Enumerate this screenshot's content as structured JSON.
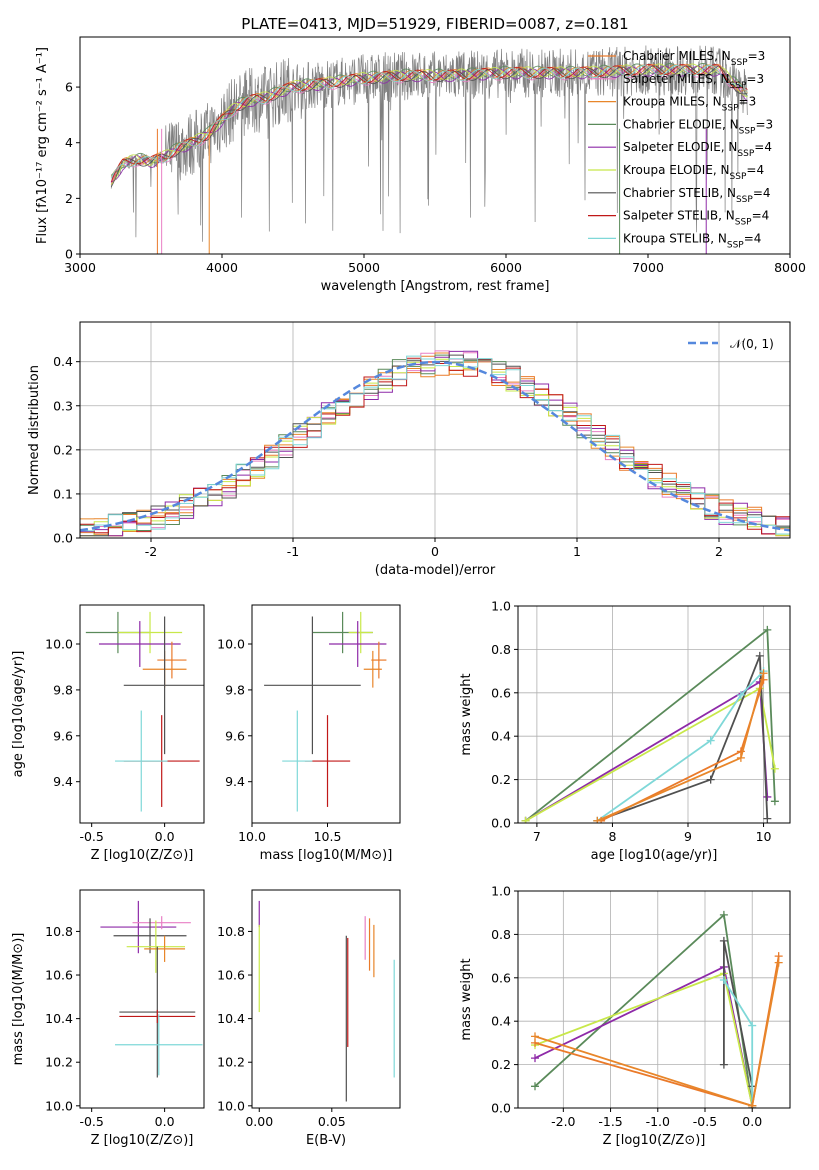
{
  "figure": {
    "title": "PLATE=0413, MJD=51929, FIBERID=0087, z=0.181"
  },
  "colors": {
    "data": "#808080",
    "models": [
      "#ea7a2a",
      "#e87fc4",
      "#e8862a",
      "#5a8a5a",
      "#8e2aa8",
      "#c8e84a",
      "#505050",
      "#c01818",
      "#7fd8d8"
    ],
    "gaussian": "#5588dd",
    "axes": "#000000",
    "grid": "#b0b0b0"
  },
  "chart_data": [
    {
      "id": "spectrum",
      "type": "line",
      "title": "PLATE=0413, MJD=51929, FIBERID=0087, z=0.181",
      "xlabel": "wavelength [Angstrom, rest frame]",
      "ylabel": "Flux [fλ10⁻¹⁷ erg cm⁻² s⁻¹ A⁻¹]",
      "xlim": [
        3000,
        8000
      ],
      "ylim": [
        0,
        7.8
      ],
      "xticks": [
        3000,
        4000,
        5000,
        6000,
        7000,
        8000
      ],
      "yticks": [
        0,
        2,
        4,
        6
      ],
      "grid": false,
      "legend_placement": "top-right",
      "series": [
        {
          "name": "Chabrier MILES, N",
          "sub": "SSP",
          "tail": "=3",
          "color": "#ea7a2a"
        },
        {
          "name": "Salpeter MILES, N",
          "sub": "SSP",
          "tail": "=3",
          "color": "#e87fc4"
        },
        {
          "name": "Kroupa MILES, N",
          "sub": "SSP",
          "tail": "=3",
          "color": "#e8862a"
        },
        {
          "name": "Chabrier ELODIE, N",
          "sub": "SSP",
          "tail": "=3",
          "color": "#5a8a5a"
        },
        {
          "name": "Salpeter ELODIE, N",
          "sub": "SSP",
          "tail": "=4",
          "color": "#8e2aa8"
        },
        {
          "name": "Kroupa ELODIE, N",
          "sub": "SSP",
          "tail": "=4",
          "color": "#c8e84a"
        },
        {
          "name": "Chabrier STELIB, N",
          "sub": "SSP",
          "tail": "=4",
          "color": "#505050"
        },
        {
          "name": "Salpeter STELIB, N",
          "sub": "SSP",
          "tail": "=4",
          "color": "#c01818"
        },
        {
          "name": "Kroupa STELIB, N",
          "sub": "SSP",
          "tail": "=4",
          "color": "#7fd8d8"
        }
      ],
      "continuum": {
        "x": [
          3220,
          3300,
          3400,
          3500,
          3600,
          3700,
          3800,
          3900,
          4000,
          4100,
          4200,
          4300,
          4400,
          4500,
          4700,
          5000,
          5300,
          5600,
          6000,
          6500,
          7000,
          7500,
          7700
        ],
        "y": [
          2.6,
          3.2,
          3.4,
          3.3,
          3.5,
          3.8,
          4.0,
          4.3,
          4.8,
          5.3,
          5.5,
          5.6,
          5.8,
          6.0,
          6.1,
          6.3,
          6.4,
          6.4,
          6.5,
          6.5,
          6.6,
          6.6,
          5.7
        ]
      }
    },
    {
      "id": "residuals",
      "type": "bar",
      "xlabel": "(data-model)/error",
      "ylabel": "Normed distribution",
      "xlim": [
        -2.5,
        2.5
      ],
      "ylim": [
        0,
        0.49
      ],
      "xticks": [
        -2,
        -1,
        0,
        1,
        2
      ],
      "yticks": [
        0.0,
        0.1,
        0.2,
        0.3,
        0.4
      ],
      "grid": true,
      "legend_placement": "top-right",
      "gaussian_label": "𝒩(0, 1)"
    },
    {
      "id": "age-vs-Z",
      "type": "scatter",
      "xlabel": "Z [log10(Z/Z⊙)]",
      "ylabel": "age  [log10(age/yr)]",
      "xlim": [
        -0.58,
        0.27
      ],
      "ylim": [
        9.22,
        10.17
      ],
      "xticks": [
        -0.5,
        0.0
      ],
      "yticks": [
        9.4,
        9.6,
        9.8,
        10.0
      ],
      "points": [
        {
          "x": -0.32,
          "xerr": 0.22,
          "y": 10.05,
          "yerr": 0.09,
          "c": 3
        },
        {
          "x": -0.1,
          "xerr": 0.22,
          "y": 10.05,
          "yerr": 0.09,
          "c": 5
        },
        {
          "x": -0.17,
          "xerr": 0.28,
          "y": 10.0,
          "yerr": 0.1,
          "c": 4
        },
        {
          "x": 0.05,
          "xerr": 0.1,
          "y": 9.93,
          "yerr": 0.08,
          "c": 0
        },
        {
          "x": 0.0,
          "xerr": 0.15,
          "y": 9.89,
          "yerr": 0.08,
          "c": 2
        },
        {
          "x": 0.0,
          "xerr": 0.28,
          "y": 9.82,
          "yerr": 0.3,
          "c": 6
        },
        {
          "x": -0.02,
          "xerr": 0.26,
          "y": 9.49,
          "yerr": 0.2,
          "c": 7
        },
        {
          "x": -0.16,
          "xerr": 0.18,
          "y": 9.49,
          "yerr": 0.22,
          "c": 8
        }
      ]
    },
    {
      "id": "age-vs-mass",
      "type": "scatter",
      "xlabel": "mass [log10(M/M⊙)]",
      "ylabel": "",
      "xlim": [
        10.0,
        10.98
      ],
      "ylim": [
        9.22,
        10.17
      ],
      "xticks": [
        10.0,
        10.5
      ],
      "yticks": [
        9.4,
        9.6,
        9.8,
        10.0
      ],
      "points": [
        {
          "x": 10.6,
          "xerr": 0.2,
          "y": 10.05,
          "yerr": 0.09,
          "c": 3
        },
        {
          "x": 10.72,
          "xerr": 0.08,
          "y": 10.05,
          "yerr": 0.09,
          "c": 5
        },
        {
          "x": 10.7,
          "xerr": 0.19,
          "y": 10.0,
          "yerr": 0.1,
          "c": 4
        },
        {
          "x": 10.84,
          "xerr": 0.05,
          "y": 9.93,
          "yerr": 0.08,
          "c": 0
        },
        {
          "x": 10.8,
          "xerr": 0.06,
          "y": 9.89,
          "yerr": 0.08,
          "c": 2
        },
        {
          "x": 10.4,
          "xerr": 0.32,
          "y": 9.82,
          "yerr": 0.3,
          "c": 6
        },
        {
          "x": 10.5,
          "xerr": 0.15,
          "y": 9.49,
          "yerr": 0.2,
          "c": 7
        },
        {
          "x": 10.3,
          "xerr": 0.1,
          "y": 9.49,
          "yerr": 0.22,
          "c": 8
        }
      ]
    },
    {
      "id": "massweight-vs-age",
      "type": "line",
      "xlabel": "age  [log10(age/yr)]",
      "ylabel": "mass weight",
      "xlim": [
        6.75,
        10.35
      ],
      "ylim": [
        0.0,
        1.0
      ],
      "xticks": [
        7,
        8,
        9,
        10
      ],
      "yticks": [
        0.0,
        0.2,
        0.4,
        0.6,
        0.8,
        1.0
      ],
      "grid": true,
      "series": [
        {
          "c": 3,
          "x": [
            6.85,
            10.05,
            10.15
          ],
          "y": [
            0.01,
            0.89,
            0.1
          ]
        },
        {
          "c": 4,
          "x": [
            6.85,
            9.95,
            10.05
          ],
          "y": [
            0.01,
            0.65,
            0.12
          ]
        },
        {
          "c": 5,
          "x": [
            6.85,
            9.95,
            10.15
          ],
          "y": [
            0.01,
            0.62,
            0.25
          ]
        },
        {
          "c": 6,
          "x": [
            7.8,
            9.3,
            9.95,
            10.05
          ],
          "y": [
            0.01,
            0.2,
            0.77,
            0.02
          ]
        },
        {
          "c": 8,
          "x": [
            7.8,
            9.3,
            9.7,
            10.0
          ],
          "y": [
            0.01,
            0.38,
            0.59,
            0.7
          ]
        },
        {
          "c": 0,
          "x": [
            7.85,
            9.7,
            10.0
          ],
          "y": [
            0.01,
            0.33,
            0.66
          ]
        },
        {
          "c": 2,
          "x": [
            7.8,
            9.7,
            10.0
          ],
          "y": [
            0.01,
            0.3,
            0.69
          ]
        }
      ]
    },
    {
      "id": "mass-vs-Z",
      "type": "scatter",
      "xlabel": "Z [log10(Z/Z⊙)]",
      "ylabel": "mass [log10(M/M⊙)]",
      "xlim": [
        -0.58,
        0.27
      ],
      "ylim": [
        9.99,
        10.99
      ],
      "xticks": [
        -0.5,
        0.0
      ],
      "yticks": [
        10.0,
        10.2,
        10.4,
        10.6,
        10.8
      ],
      "points": [
        {
          "x": -0.18,
          "xerr": 0.26,
          "y": 10.82,
          "yerr": 0.12,
          "c": 4
        },
        {
          "x": -0.02,
          "xerr": 0.2,
          "y": 10.84,
          "yerr": 0.03,
          "c": 1
        },
        {
          "x": -0.1,
          "xerr": 0.25,
          "y": 10.78,
          "yerr": 0.08,
          "c": 6
        },
        {
          "x": -0.06,
          "xerr": 0.2,
          "y": 10.73,
          "yerr": 0.12,
          "c": 5
        },
        {
          "x": 0.0,
          "xerr": 0.14,
          "y": 10.72,
          "yerr": 0.06,
          "c": 2
        },
        {
          "x": -0.05,
          "xerr": 0.26,
          "y": 10.43,
          "yerr": 0.3,
          "c": 6
        },
        {
          "x": -0.05,
          "xerr": 0.26,
          "y": 10.41,
          "yerr": 0.03,
          "c": 7
        },
        {
          "x": -0.04,
          "xerr": 0.3,
          "y": 10.28,
          "yerr": 0.14,
          "c": 8
        }
      ]
    },
    {
      "id": "mass-vs-EBV",
      "type": "scatter",
      "xlabel": "E(B-V)",
      "ylabel": "",
      "xlim": [
        -0.005,
        0.097
      ],
      "ylim": [
        9.99,
        10.99
      ],
      "xticks": [
        0.0,
        0.05
      ],
      "yticks": [
        10.0,
        10.2,
        10.4,
        10.6,
        10.8
      ],
      "points": [
        {
          "x": 0.0,
          "y": 10.88,
          "yerr": 0.06,
          "c": 4
        },
        {
          "x": 0.0,
          "y": 10.63,
          "yerr": 0.2,
          "c": 5
        },
        {
          "x": 0.06,
          "y": 10.4,
          "yerr": 0.38,
          "c": 6
        },
        {
          "x": 0.061,
          "y": 10.52,
          "yerr": 0.25,
          "c": 7
        },
        {
          "x": 0.073,
          "y": 10.77,
          "yerr": 0.1,
          "c": 1
        },
        {
          "x": 0.076,
          "y": 10.74,
          "yerr": 0.12,
          "c": 0
        },
        {
          "x": 0.079,
          "y": 10.71,
          "yerr": 0.12,
          "c": 2
        },
        {
          "x": 0.093,
          "y": 10.4,
          "yerr": 0.27,
          "c": 8
        }
      ]
    },
    {
      "id": "massweight-vs-Z",
      "type": "line",
      "xlabel": "Z [log10(Z/Z⊙)]",
      "ylabel": "mass weight",
      "xlim": [
        -2.48,
        0.4
      ],
      "ylim": [
        0.0,
        1.0
      ],
      "xticks": [
        -2.0,
        -1.5,
        -1.0,
        -0.5,
        0.0
      ],
      "yticks": [
        0.0,
        0.2,
        0.4,
        0.6,
        0.8,
        1.0
      ],
      "grid": true,
      "series": [
        {
          "c": 3,
          "x": [
            -2.3,
            -0.3,
            0.0,
            0.0
          ],
          "y": [
            0.1,
            0.89,
            0.01,
            0.0
          ]
        },
        {
          "c": 4,
          "x": [
            -2.3,
            -0.3,
            0.0
          ],
          "y": [
            0.23,
            0.65,
            0.01
          ]
        },
        {
          "c": 5,
          "x": [
            -2.3,
            -0.3,
            0.0
          ],
          "y": [
            0.29,
            0.62,
            0.01
          ]
        },
        {
          "c": 6,
          "x": [
            -0.3,
            -0.3,
            0.0,
            0.0
          ],
          "y": [
            0.2,
            0.77,
            0.1,
            0.0
          ]
        },
        {
          "c": 8,
          "x": [
            -0.3,
            0.0,
            0.0
          ],
          "y": [
            0.59,
            0.38,
            0.01
          ]
        },
        {
          "c": 0,
          "x": [
            -2.3,
            0.0,
            0.28
          ],
          "y": [
            0.3,
            0.01,
            0.7
          ]
        },
        {
          "c": 2,
          "x": [
            -2.3,
            0.0,
            0.28
          ],
          "y": [
            0.33,
            0.01,
            0.67
          ]
        }
      ]
    }
  ]
}
